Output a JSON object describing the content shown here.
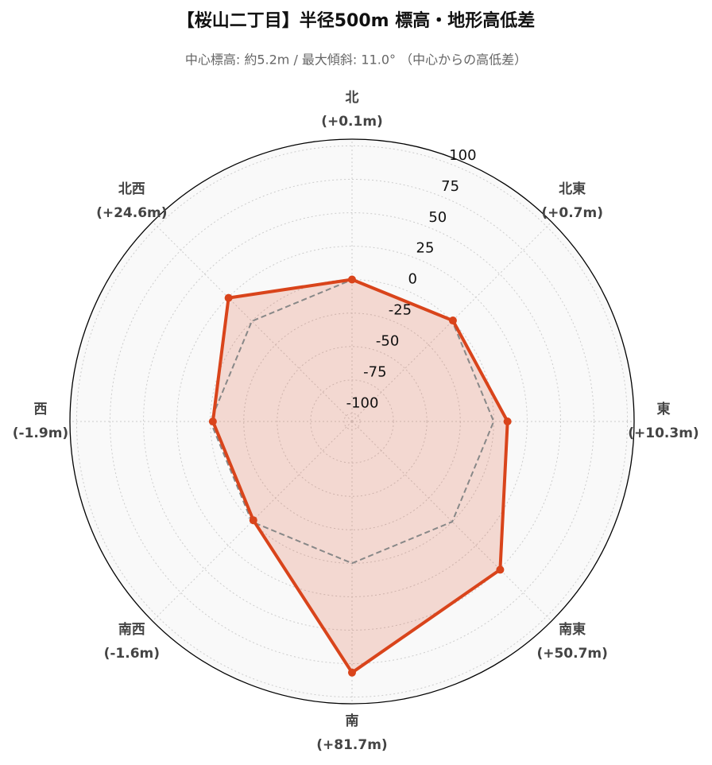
{
  "chart_data": {
    "type": "radar",
    "title": "【桜山二丁目】半径500m 標高・地形高低差",
    "subtitle": "中心標高: 約5.2m / 最大傾斜: 11.0° （中心からの高低差）",
    "categories": [
      "北",
      "北東",
      "東",
      "南東",
      "南",
      "南西",
      "西",
      "北西"
    ],
    "series": [
      {
        "color": "#d9441b",
        "values": [
          0.1,
          0.7,
          10.3,
          50.7,
          81.7,
          -1.6,
          -1.9,
          24.6
        ],
        "value_labels": [
          "(+0.1m)",
          "(+0.7m)",
          "(+10.3m)",
          "(+50.7m)",
          "(+81.7m)",
          "(-1.6m)",
          "(-1.9m)",
          "(+24.6m)"
        ]
      },
      {
        "color": "#888888",
        "dashed": true,
        "values": [
          0,
          0,
          0,
          0,
          0,
          0,
          0,
          0
        ]
      }
    ],
    "ylim": [
      -106,
      105
    ],
    "yticks": [
      -100,
      -75,
      -50,
      -25,
      0,
      25,
      50,
      75,
      100
    ],
    "grid": true
  }
}
